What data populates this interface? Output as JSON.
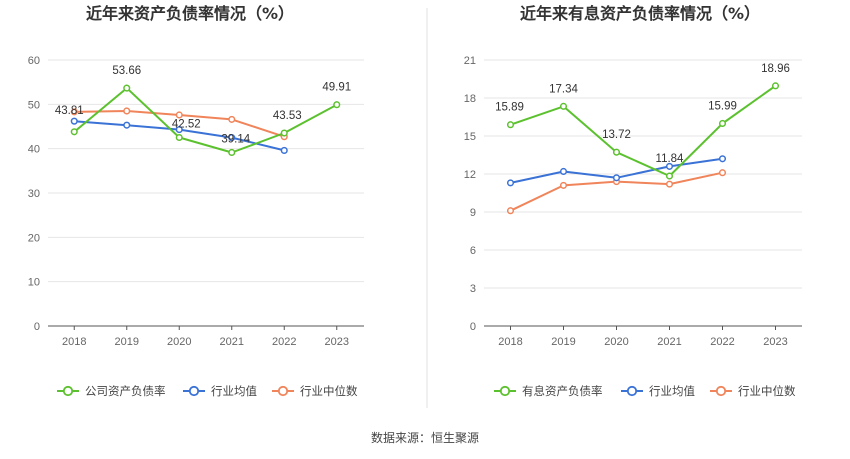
{
  "footer": {
    "source_text": "数据来源：恒生聚源"
  },
  "colors": {
    "company": "#5cc12e",
    "industry_avg": "#3a72d6",
    "industry_median": "#f0845a",
    "grid": "#e6e6e6",
    "axis": "#555555",
    "divider": "#e0e0e0"
  },
  "chart_data": [
    {
      "type": "line",
      "title": "近年来资产负债率情况（%）",
      "categories": [
        "2018",
        "2019",
        "2020",
        "2021",
        "2022",
        "2023"
      ],
      "ylim": [
        0,
        60
      ],
      "yticks": [
        0,
        10,
        20,
        30,
        40,
        50,
        60
      ],
      "grid": true,
      "legend_position": "bottom",
      "series": [
        {
          "name": "公司资产负债率",
          "color_key": "company",
          "values": [
            43.81,
            53.66,
            42.52,
            39.14,
            43.53,
            49.91
          ],
          "labels": [
            "43.81",
            "53.66",
            "42.52",
            "39.14",
            "43.53",
            "49.91"
          ]
        },
        {
          "name": "行业均值",
          "color_key": "industry_avg",
          "values": [
            46.2,
            45.3,
            44.3,
            42.5,
            39.6,
            null
          ]
        },
        {
          "name": "行业中位数",
          "color_key": "industry_median",
          "values": [
            48.3,
            48.5,
            47.6,
            46.6,
            42.7,
            null
          ]
        }
      ]
    },
    {
      "type": "line",
      "title": "近年来有息资产负债率情况（%）",
      "categories": [
        "2018",
        "2019",
        "2020",
        "2021",
        "2022",
        "2023"
      ],
      "ylim": [
        0,
        21
      ],
      "yticks": [
        0,
        3,
        6,
        9,
        12,
        15,
        18,
        21
      ],
      "grid": true,
      "legend_position": "bottom",
      "series": [
        {
          "name": "有息资产负债率",
          "color_key": "company",
          "values": [
            15.89,
            17.34,
            13.72,
            11.84,
            15.99,
            18.96
          ],
          "labels": [
            "15.89",
            "17.34",
            "13.72",
            "11.84",
            "15.99",
            "18.96"
          ]
        },
        {
          "name": "行业均值",
          "color_key": "industry_avg",
          "values": [
            11.3,
            12.2,
            11.7,
            12.6,
            13.2,
            null
          ]
        },
        {
          "name": "行业中位数",
          "color_key": "industry_median",
          "values": [
            9.1,
            11.1,
            11.4,
            11.2,
            12.1,
            null
          ]
        }
      ]
    }
  ]
}
